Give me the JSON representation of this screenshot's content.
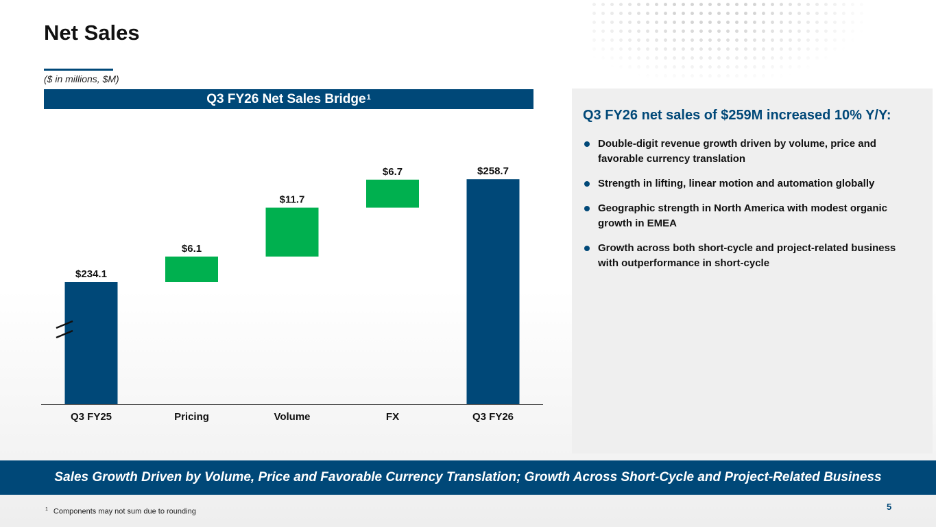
{
  "title": "Net Sales",
  "units_note": "($ in millions, $M)",
  "chart_header": {
    "text": "Q3 FY26 Net Sales Bridge",
    "sup": "1"
  },
  "chart_data": {
    "type": "bar",
    "subtype": "waterfall",
    "title": "Q3 FY26 Net Sales Bridge",
    "categories": [
      "Q3 FY25",
      "Pricing",
      "Volume",
      "FX",
      "Q3 FY26"
    ],
    "values": [
      234.1,
      6.1,
      11.7,
      6.7,
      258.7
    ],
    "labels": [
      "$234.1",
      "$6.1",
      "$11.7",
      "$6.7",
      "$258.7"
    ],
    "kinds": [
      "total",
      "increase",
      "increase",
      "increase",
      "total"
    ],
    "xlabel": "",
    "ylabel": "$M",
    "ylim": [
      200,
      260
    ],
    "axis_break": true,
    "grid": false,
    "colors": {
      "total": "#004878",
      "increase": "#00b04f"
    }
  },
  "panel": {
    "heading": "Q3 FY26 net sales of $259M increased 10% Y/Y:",
    "bullets": [
      "Double-digit revenue growth driven by volume, price and favorable currency translation",
      "Strength in lifting, linear motion and automation globally",
      "Geographic strength in North America with modest organic growth in EMEA",
      "Growth across both short-cycle and project-related business with outperformance in short-cycle"
    ]
  },
  "banner": "Sales Growth Driven by Volume, Price and Favorable Currency Translation; Growth Across Short-Cycle and Project-Related Business",
  "footnote": {
    "marker": "1",
    "text": "Components may not sum due to rounding"
  },
  "page_number": "5",
  "colors": {
    "brand_navy": "#004878",
    "increase_green": "#00b04f"
  }
}
